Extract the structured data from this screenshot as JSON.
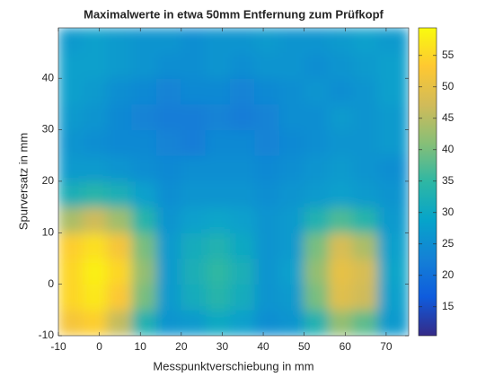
{
  "chart_data": {
    "type": "heatmap",
    "title": "Maximalwerte in etwa 50mm Entfernung zum Prüfkopf",
    "x_label": "Messpunktverschiebung in mm",
    "y_label": "Spurversatz in mm",
    "x": [
      -7,
      -1,
      5,
      11,
      17,
      23,
      29,
      35,
      41,
      47,
      53,
      59,
      65,
      71
    ],
    "y": [
      -7.5,
      -2.5,
      2.5,
      7.5,
      12.5,
      17.5,
      22.5,
      27.5,
      32.5,
      37.5,
      42.5,
      47.5
    ],
    "values": [
      [
        52,
        54,
        46,
        33,
        26,
        27,
        30,
        28,
        25,
        26,
        33,
        42,
        38,
        27
      ],
      [
        55,
        57,
        53,
        40,
        27,
        31,
        34,
        31,
        26,
        27,
        40,
        49,
        47,
        28
      ],
      [
        55,
        58,
        55,
        42,
        27,
        32,
        35,
        32,
        26,
        28,
        42,
        50,
        48,
        29
      ],
      [
        54,
        56,
        52,
        40,
        27,
        31,
        33,
        30,
        26,
        27,
        40,
        48,
        44,
        28
      ],
      [
        44,
        47,
        43,
        34,
        26,
        28,
        29,
        28,
        26,
        27,
        33,
        37,
        34,
        27
      ],
      [
        32,
        34,
        32,
        28,
        25,
        26,
        26,
        26,
        25,
        26,
        27,
        28,
        27,
        26
      ],
      [
        27,
        27,
        26,
        25,
        24,
        25,
        25,
        25,
        24,
        25,
        26,
        27,
        26,
        25
      ],
      [
        26,
        25,
        24,
        24,
        23,
        22,
        24,
        24,
        23,
        24,
        25,
        26,
        26,
        27
      ],
      [
        27,
        26,
        24,
        23,
        22,
        22,
        23,
        22,
        23,
        25,
        25,
        27,
        26,
        27
      ],
      [
        28,
        27,
        25,
        24,
        23,
        24,
        24,
        23,
        24,
        25,
        26,
        25,
        26,
        28
      ],
      [
        28,
        28,
        27,
        26,
        25,
        25,
        26,
        25,
        26,
        26,
        25,
        26,
        27,
        28
      ],
      [
        27,
        28,
        27,
        26,
        26,
        25,
        26,
        26,
        27,
        26,
        26,
        27,
        28,
        27
      ]
    ],
    "xlim": [
      -10,
      75.5
    ],
    "ylim": [
      -10,
      49.8
    ],
    "xticks": [
      -10,
      0,
      10,
      20,
      30,
      40,
      50,
      60,
      70
    ],
    "yticks": [
      -10,
      0,
      10,
      20,
      30,
      40
    ],
    "clim": [
      10.4,
      59.4
    ],
    "cticks": [
      15,
      20,
      25,
      30,
      35,
      40,
      45,
      50,
      55
    ],
    "colormap": [
      "#352a87",
      "#0f5cdd",
      "#1481d6",
      "#06a4ca",
      "#2eb7a4",
      "#87bf77",
      "#d1bb59",
      "#fec832",
      "#f9fb0e"
    ]
  }
}
